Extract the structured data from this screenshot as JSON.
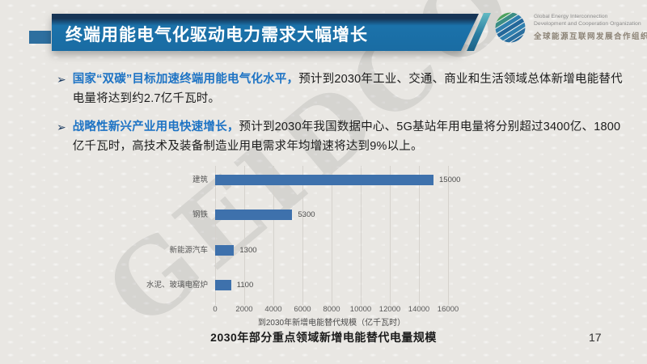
{
  "slide": {
    "title": "终端用能电气化驱动电力需求大幅增长",
    "caption": "2030年部分重点领域新增电能替代电量规模",
    "page_number": "17"
  },
  "logo": {
    "line1": "Global Energy Interconnection",
    "line2": "Development and Cooperation Organization",
    "line3": "全球能源互联网发展合作组织",
    "icon": "globe-icon"
  },
  "watermark": "GEIDCO",
  "bullets": [
    {
      "marker": "➢",
      "highlight": "国家“双碳”目标加速终端用能电气化水平，",
      "rest": "预计到2030年工业、交通、商业和生活领域总体新增电能替代电量将达到约2.7亿千瓦时。"
    },
    {
      "marker": "➢",
      "highlight": "战略性新兴产业用电快速增长，",
      "rest": "预计到2030年我国数据中心、5G基站年用电量将分别超过3400亿、1800亿千瓦时，高技术及装备制造业用电需求年均增速将达到9%以上。"
    }
  ],
  "colors": {
    "title_bar_blue": "#1b72aa",
    "title_bar_navy": "#163455",
    "accent_blue": "#2e6f9f",
    "slash_teal": "#2a7da2",
    "highlight_text": "#1d73c4",
    "bar_fill": "#3e71ac",
    "gridline": "#d5d2cd",
    "background": "#e9e7e3"
  },
  "chart_data": {
    "type": "bar",
    "orientation": "horizontal",
    "categories": [
      "建筑",
      "钢铁",
      "新能源汽车",
      "水泥、玻璃电窑炉"
    ],
    "values": [
      15000,
      5300,
      1300,
      1100
    ],
    "xlabel": "到2030年新增电能替代规模（亿千瓦时）",
    "xlim": [
      0,
      16000
    ],
    "xticks": [
      0,
      2000,
      4000,
      6000,
      8000,
      10000,
      12000,
      14000,
      16000
    ],
    "grid": true,
    "legend": false,
    "bar_color": "#3e71ac",
    "value_labels_shown": true
  }
}
